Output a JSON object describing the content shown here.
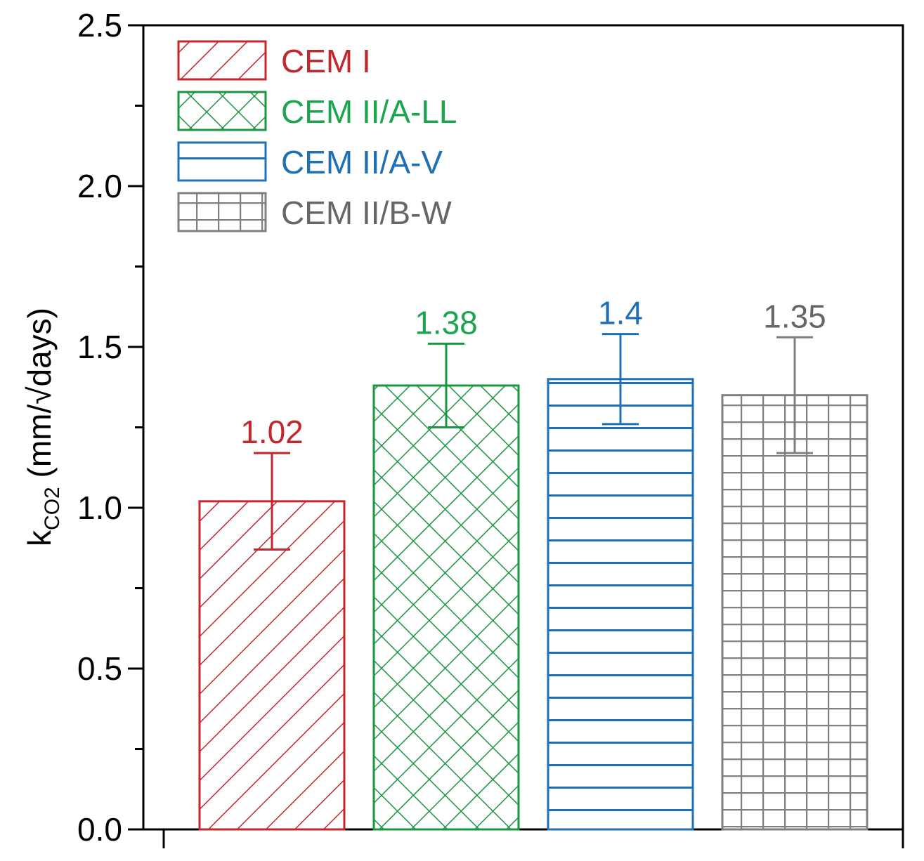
{
  "chart_data": {
    "type": "bar",
    "categories": [
      "CEM I",
      "CEM II/A-LL",
      "CEM II/A-V",
      "CEM II/B-W"
    ],
    "values": [
      1.02,
      1.38,
      1.4,
      1.35
    ],
    "errors": [
      0.15,
      0.13,
      0.14,
      0.18
    ],
    "value_labels": [
      "1.02",
      "1.38",
      "1.4",
      "1.35"
    ],
    "colors": [
      "#c0282d",
      "#1a9641",
      "#1f6fb4",
      "#7f7f7f"
    ],
    "label_colors": [
      "#c0282d",
      "#1aa54e",
      "#1f6fb4",
      "#666666"
    ],
    "patterns": [
      "diagonal-hatch",
      "cross-hatch",
      "horizontal-lines",
      "grid"
    ],
    "title": "",
    "xlabel": "",
    "ylabel": {
      "main": "k",
      "sub": "CO2",
      "rest": " (mm/√days)"
    },
    "ylim": [
      0,
      2.5
    ],
    "yticks": [
      "0.0",
      "0.5",
      "1.0",
      "1.5",
      "2.0",
      "2.5"
    ],
    "ytick_values": [
      0,
      0.5,
      1.0,
      1.5,
      2.0,
      2.5
    ],
    "legend_position": "top-left",
    "grid": false
  }
}
